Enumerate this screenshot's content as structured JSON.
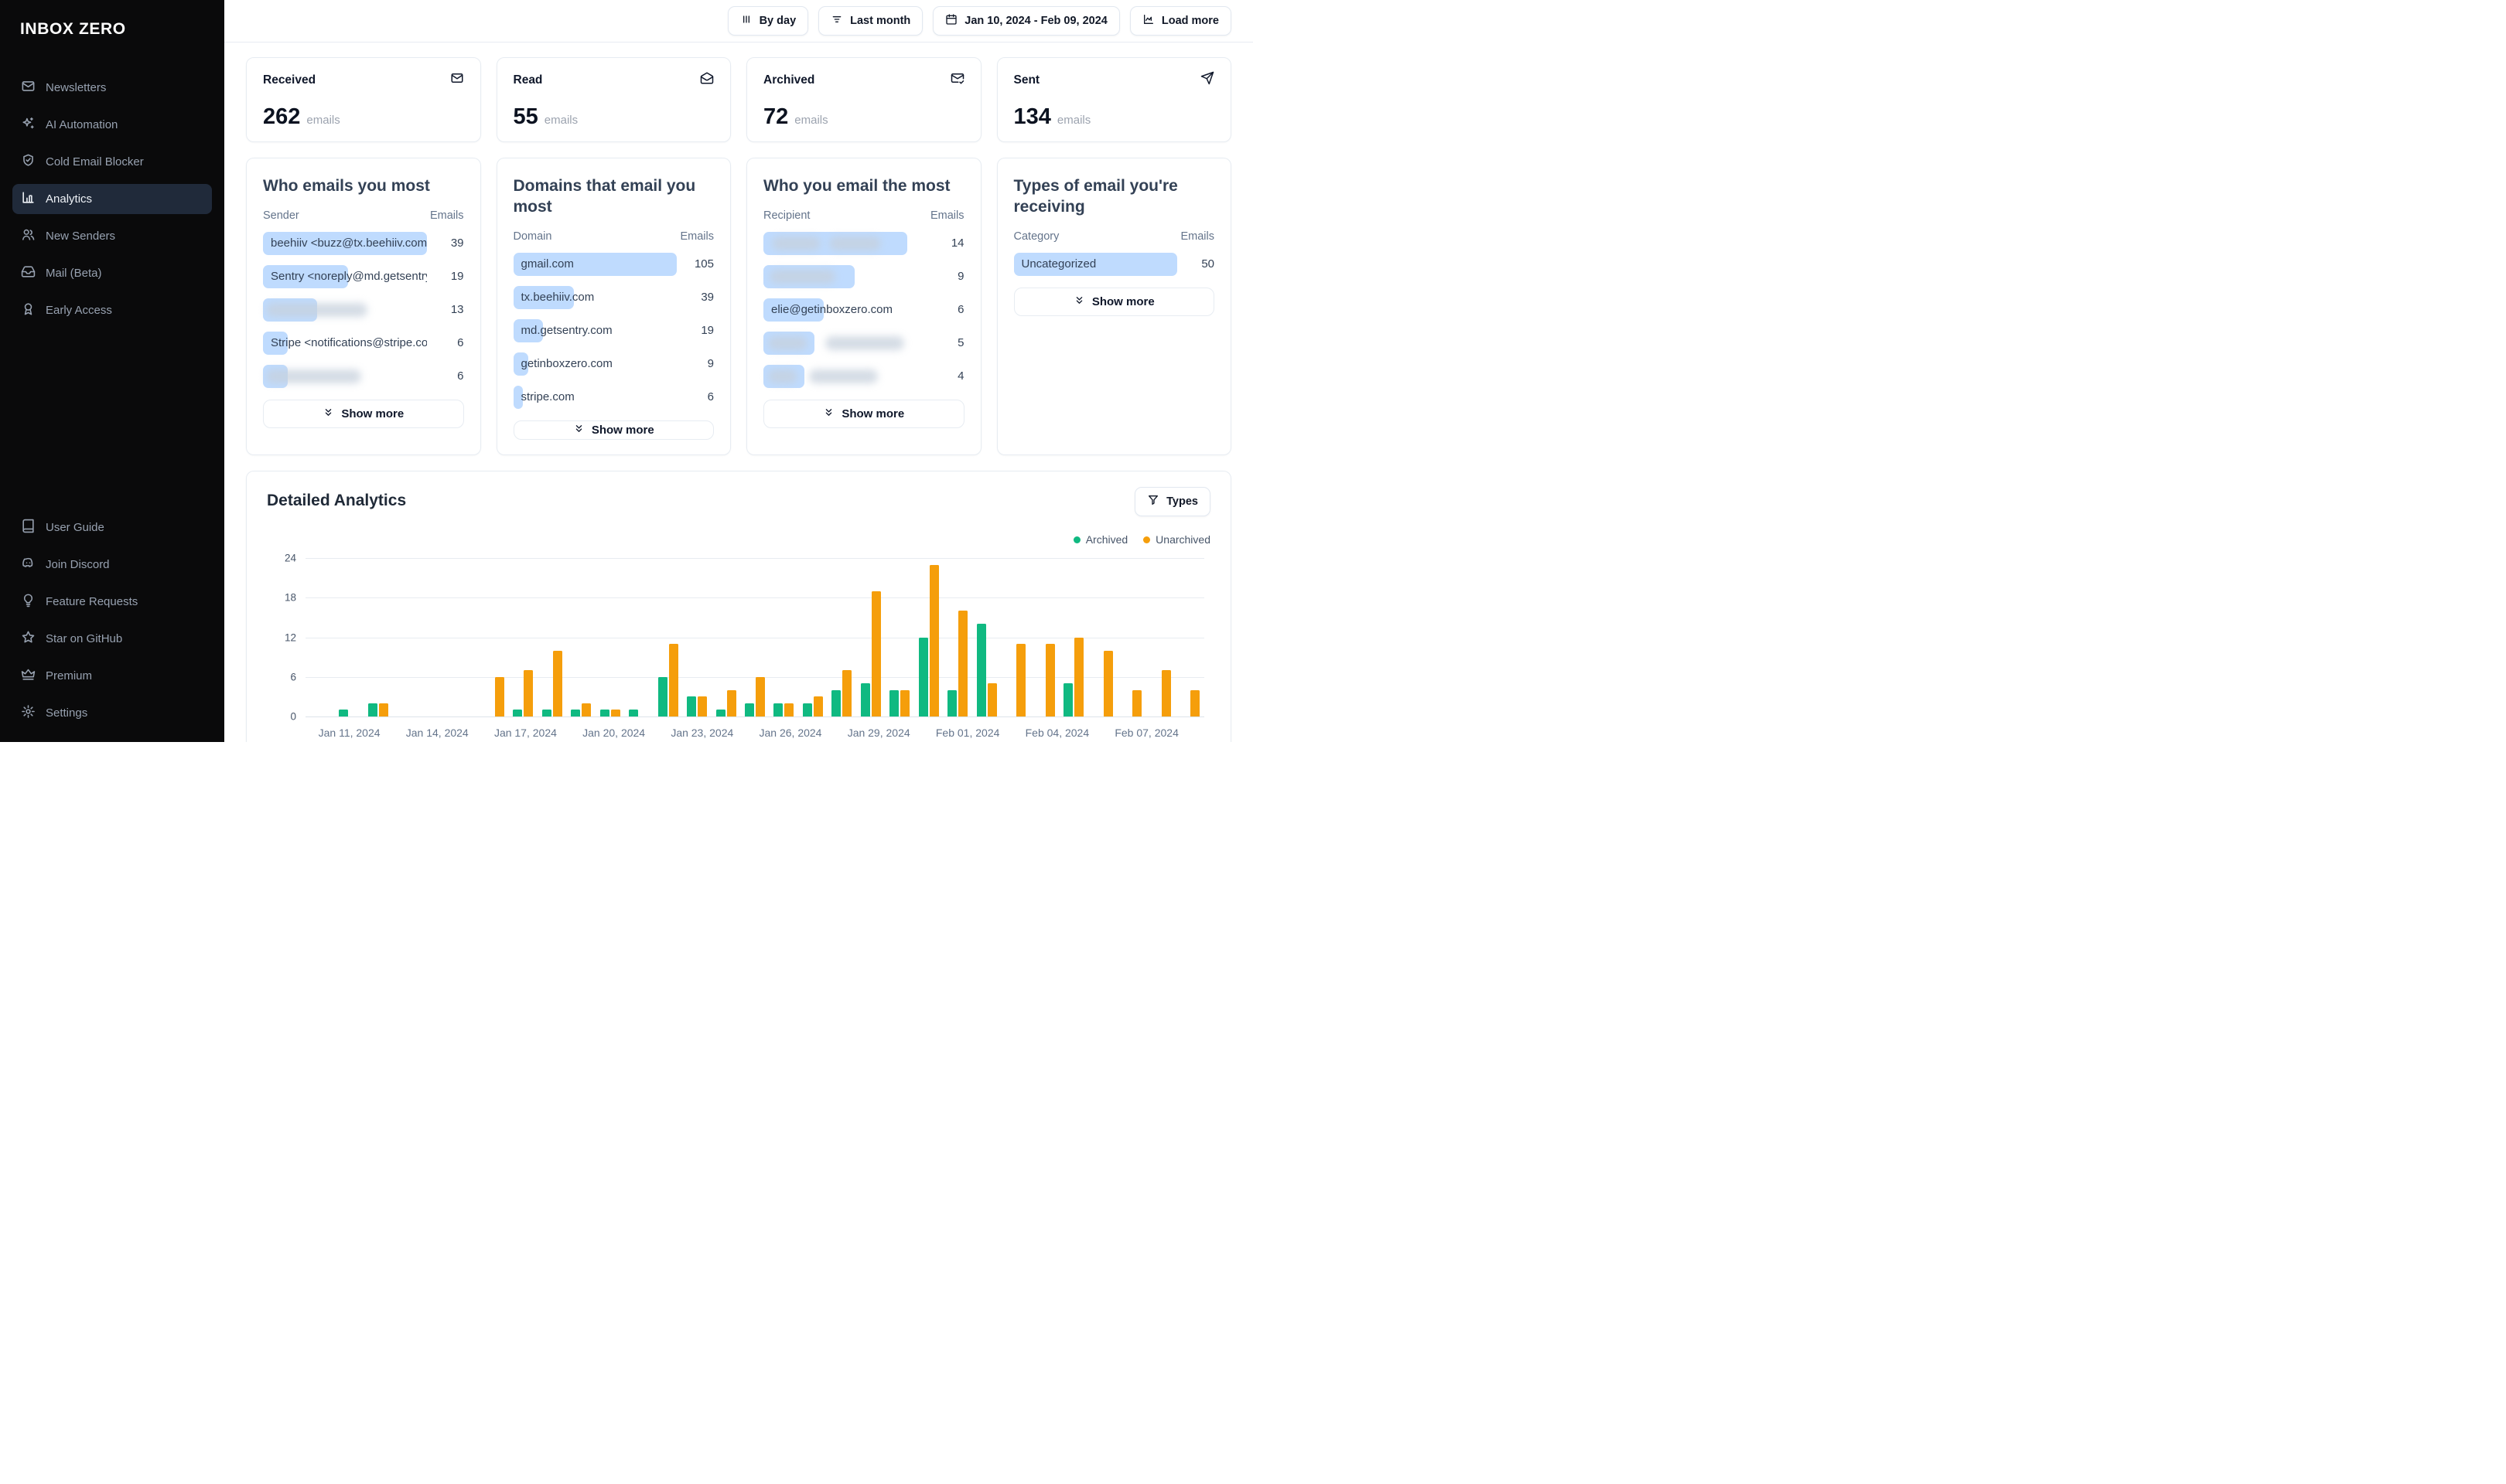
{
  "app": {
    "logo": "INBOX ZERO"
  },
  "sidebar": {
    "main": [
      {
        "label": "Newsletters",
        "icon": "mail",
        "active": false
      },
      {
        "label": "AI Automation",
        "icon": "sparkles",
        "active": false
      },
      {
        "label": "Cold Email Blocker",
        "icon": "shield-check",
        "active": false
      },
      {
        "label": "Analytics",
        "icon": "bar-chart",
        "active": true
      },
      {
        "label": "New Senders",
        "icon": "users",
        "active": false
      },
      {
        "label": "Mail (Beta)",
        "icon": "inbox",
        "active": false
      },
      {
        "label": "Early Access",
        "icon": "award",
        "active": false
      }
    ],
    "secondary": [
      {
        "label": "User Guide",
        "icon": "book",
        "active": false
      },
      {
        "label": "Join Discord",
        "icon": "discord",
        "active": false
      },
      {
        "label": "Feature Requests",
        "icon": "lightbulb",
        "active": false
      },
      {
        "label": "Star on GitHub",
        "icon": "star",
        "active": false
      },
      {
        "label": "Premium",
        "icon": "crown",
        "active": false
      },
      {
        "label": "Settings",
        "icon": "settings",
        "active": false
      }
    ]
  },
  "toolbar": {
    "buttons": [
      {
        "label": "By day",
        "icon": "columns"
      },
      {
        "label": "Last month",
        "icon": "filter-lines"
      },
      {
        "label": "Jan 10, 2024 - Feb 09, 2024",
        "icon": "calendar"
      },
      {
        "label": "Load more",
        "icon": "chart-line"
      }
    ]
  },
  "stats": [
    {
      "label": "Received",
      "value": "262",
      "unit": "emails",
      "icon": "mail"
    },
    {
      "label": "Read",
      "value": "55",
      "unit": "emails",
      "icon": "mail-open"
    },
    {
      "label": "Archived",
      "value": "72",
      "unit": "emails",
      "icon": "mail-check"
    },
    {
      "label": "Sent",
      "value": "134",
      "unit": "emails",
      "icon": "send"
    }
  ],
  "panels": [
    {
      "title": "Who emails you most",
      "col1": "Sender",
      "col2": "Emails",
      "show_more": "Show more",
      "rows": [
        {
          "label": "beehiiv <buzz@tx.beehiiv.com>",
          "value": 39,
          "bar_pct": 100,
          "smudges": []
        },
        {
          "label": "Sentry <noreply@md.getsentry....",
          "value": 19,
          "bar_pct": 52,
          "smudges": []
        },
        {
          "label": null,
          "value": 13,
          "bar_pct": 33,
          "smudges": [
            [
              2,
              62
            ]
          ]
        },
        {
          "label": "Stripe <notifications@stripe.co...",
          "value": 6,
          "bar_pct": 15,
          "smudges": []
        },
        {
          "label": null,
          "value": 6,
          "bar_pct": 15,
          "smudges": [
            [
              2,
              58
            ]
          ]
        }
      ]
    },
    {
      "title": "Domains that email you most",
      "col1": "Domain",
      "col2": "Emails",
      "show_more": "Show more",
      "rows": [
        {
          "label": "gmail.com",
          "value": 105,
          "bar_pct": 100,
          "smudges": []
        },
        {
          "label": "tx.beehiiv.com",
          "value": 39,
          "bar_pct": 37,
          "smudges": []
        },
        {
          "label": "md.getsentry.com",
          "value": 19,
          "bar_pct": 18,
          "smudges": []
        },
        {
          "label": "getinboxzero.com",
          "value": 9,
          "bar_pct": 9,
          "smudges": []
        },
        {
          "label": "stripe.com",
          "value": 6,
          "bar_pct": 6,
          "smudges": []
        }
      ]
    },
    {
      "title": "Who you email the most",
      "col1": "Recipient",
      "col2": "Emails",
      "show_more": "Show more",
      "rows": [
        {
          "label": null,
          "value": 14,
          "bar_pct": 88,
          "smudges": [
            [
              5,
              30
            ],
            [
              40,
              32
            ]
          ]
        },
        {
          "label": null,
          "value": 9,
          "bar_pct": 56,
          "smudges": [
            [
              4,
              40
            ]
          ]
        },
        {
          "label": "elie@getinboxzero.com",
          "value": 6,
          "bar_pct": 37,
          "smudges": []
        },
        {
          "label": null,
          "value": 5,
          "bar_pct": 31,
          "smudges": [
            [
              3,
              24
            ],
            [
              38,
              48
            ]
          ]
        },
        {
          "label": null,
          "value": 4,
          "bar_pct": 25,
          "smudges": [
            [
              3,
              18
            ],
            [
              28,
              42
            ]
          ]
        }
      ]
    },
    {
      "title": "Types of email you're receiving",
      "col1": "Category",
      "col2": "Emails",
      "show_more": "Show more",
      "rows": [
        {
          "label": "Uncategorized",
          "value": 50,
          "bar_pct": 100,
          "smudges": []
        }
      ]
    }
  ],
  "detailed": {
    "title": "Detailed Analytics",
    "types_button": "Types",
    "legend": [
      {
        "label": "Archived",
        "color": "#10b981"
      },
      {
        "label": "Unarchived",
        "color": "#f59e0b"
      }
    ]
  },
  "chart_data": {
    "type": "bar",
    "title": "Detailed Analytics",
    "xlabel": "",
    "ylabel": "",
    "ylim": [
      0,
      24
    ],
    "y_ticks": [
      0,
      6,
      12,
      18,
      24
    ],
    "grid": true,
    "legend_position": "top-right",
    "categories": [
      "Jan 10, 2024",
      "Jan 11, 2024",
      "Jan 12, 2024",
      "Jan 13, 2024",
      "Jan 14, 2024",
      "Jan 15, 2024",
      "Jan 16, 2024",
      "Jan 17, 2024",
      "Jan 18, 2024",
      "Jan 19, 2024",
      "Jan 20, 2024",
      "Jan 21, 2024",
      "Jan 22, 2024",
      "Jan 23, 2024",
      "Jan 24, 2024",
      "Jan 25, 2024",
      "Jan 26, 2024",
      "Jan 27, 2024",
      "Jan 28, 2024",
      "Jan 29, 2024",
      "Jan 30, 2024",
      "Jan 31, 2024",
      "Feb 01, 2024",
      "Feb 02, 2024",
      "Feb 03, 2024",
      "Feb 04, 2024",
      "Feb 05, 2024",
      "Feb 06, 2024",
      "Feb 07, 2024",
      "Feb 08, 2024",
      "Feb 09, 2024"
    ],
    "x_tick_labels": [
      {
        "index": 1,
        "label": "Jan 11, 2024"
      },
      {
        "index": 4,
        "label": "Jan 14, 2024"
      },
      {
        "index": 7,
        "label": "Jan 17, 2024"
      },
      {
        "index": 10,
        "label": "Jan 20, 2024"
      },
      {
        "index": 13,
        "label": "Jan 23, 2024"
      },
      {
        "index": 16,
        "label": "Jan 26, 2024"
      },
      {
        "index": 19,
        "label": "Jan 29, 2024"
      },
      {
        "index": 22,
        "label": "Feb 01, 2024"
      },
      {
        "index": 25,
        "label": "Feb 04, 2024"
      },
      {
        "index": 28,
        "label": "Feb 07, 2024"
      }
    ],
    "series": [
      {
        "name": "Archived",
        "color": "#10b981",
        "values": [
          0,
          1,
          2,
          0,
          0,
          0,
          0,
          1,
          1,
          1,
          1,
          1,
          6,
          3,
          1,
          2,
          2,
          2,
          4,
          5,
          4,
          12,
          4,
          14,
          0,
          0,
          5,
          0,
          0,
          0,
          0
        ]
      },
      {
        "name": "Unarchived",
        "color": "#f59e0b",
        "values": [
          0,
          0,
          2,
          0,
          0,
          0,
          6,
          7,
          10,
          2,
          1,
          0,
          11,
          3,
          4,
          6,
          2,
          3,
          7,
          19,
          4,
          23,
          16,
          5,
          11,
          11,
          12,
          10,
          4,
          7,
          4
        ]
      }
    ]
  },
  "colors": {
    "accent_bar": "#bfdbfe",
    "archived": "#10b981",
    "unarchived": "#f59e0b",
    "sidebar_bg": "#0a0a0b",
    "sidebar_active_bg": "#202a3a"
  }
}
